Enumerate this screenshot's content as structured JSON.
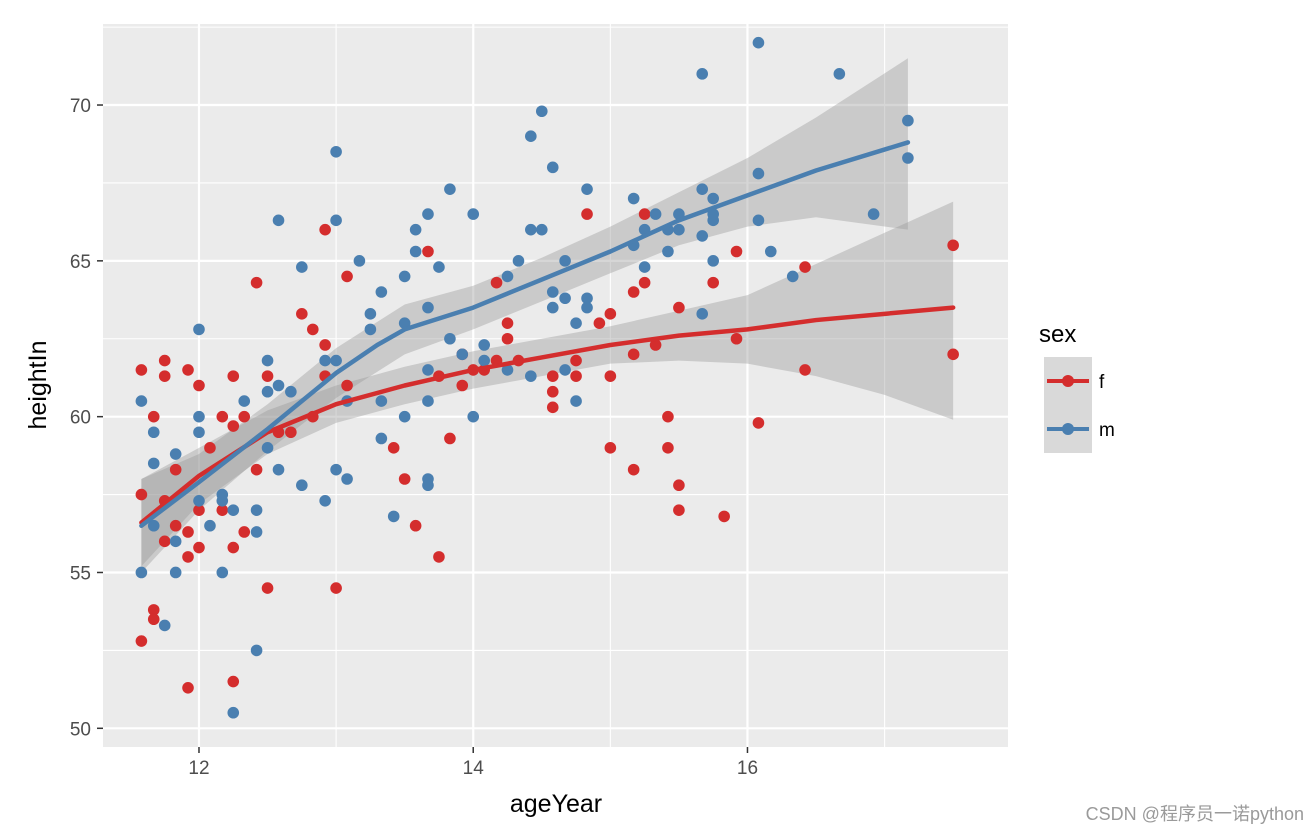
{
  "chart_data": {
    "type": "scatter",
    "xlabel": "ageYear",
    "ylabel": "heightIn",
    "xlim": [
      11.3,
      17.9
    ],
    "ylim": [
      49.4,
      72.6
    ],
    "xticks": [
      12,
      14,
      16
    ],
    "yticks": [
      50,
      55,
      60,
      65,
      70
    ],
    "xtick_labels": [
      "12",
      "14",
      "16"
    ],
    "ytick_labels": [
      "50",
      "55",
      "60",
      "65",
      "70"
    ],
    "grid": true,
    "legend": {
      "title": "sex",
      "position": "right",
      "entries": [
        {
          "key": "f",
          "label": "f"
        },
        {
          "key": "m",
          "label": "m"
        }
      ]
    },
    "series": [
      {
        "name": "f",
        "color": "#d42d2d",
        "points": [
          [
            11.58,
            61.5
          ],
          [
            11.58,
            57.5
          ],
          [
            11.58,
            52.8
          ],
          [
            11.67,
            60.0
          ],
          [
            11.67,
            53.8
          ],
          [
            11.67,
            53.5
          ],
          [
            11.75,
            61.8
          ],
          [
            11.75,
            61.3
          ],
          [
            11.75,
            57.3
          ],
          [
            11.75,
            56.0
          ],
          [
            11.83,
            58.3
          ],
          [
            11.83,
            56.5
          ],
          [
            11.92,
            61.5
          ],
          [
            11.92,
            56.3
          ],
          [
            11.92,
            55.5
          ],
          [
            11.92,
            51.3
          ],
          [
            12.0,
            61.0
          ],
          [
            12.0,
            57.0
          ],
          [
            12.0,
            55.8
          ],
          [
            12.08,
            59.0
          ],
          [
            12.17,
            60.0
          ],
          [
            12.17,
            57.0
          ],
          [
            12.25,
            61.3
          ],
          [
            12.25,
            59.7
          ],
          [
            12.25,
            55.8
          ],
          [
            12.25,
            51.5
          ],
          [
            12.33,
            60.0
          ],
          [
            12.33,
            56.3
          ],
          [
            12.42,
            64.3
          ],
          [
            12.42,
            58.3
          ],
          [
            12.5,
            61.3
          ],
          [
            12.5,
            54.5
          ],
          [
            12.58,
            59.5
          ],
          [
            12.67,
            59.5
          ],
          [
            12.75,
            63.3
          ],
          [
            12.83,
            62.8
          ],
          [
            12.83,
            60.0
          ],
          [
            12.92,
            66.0
          ],
          [
            12.92,
            62.3
          ],
          [
            12.92,
            61.3
          ],
          [
            13.0,
            54.5
          ],
          [
            13.08,
            64.5
          ],
          [
            13.08,
            61.0
          ],
          [
            13.42,
            59.0
          ],
          [
            13.5,
            58.0
          ],
          [
            13.58,
            56.5
          ],
          [
            13.67,
            65.3
          ],
          [
            13.75,
            61.3
          ],
          [
            13.75,
            55.5
          ],
          [
            13.83,
            59.3
          ],
          [
            13.92,
            62.0
          ],
          [
            13.92,
            61.0
          ],
          [
            14.0,
            61.5
          ],
          [
            14.08,
            61.5
          ],
          [
            14.17,
            64.3
          ],
          [
            14.17,
            61.8
          ],
          [
            14.25,
            63.0
          ],
          [
            14.25,
            62.5
          ],
          [
            14.33,
            61.8
          ],
          [
            14.58,
            61.3
          ],
          [
            14.58,
            60.8
          ],
          [
            14.58,
            60.3
          ],
          [
            14.75,
            61.8
          ],
          [
            14.75,
            61.3
          ],
          [
            14.83,
            66.5
          ],
          [
            14.92,
            63.0
          ],
          [
            15.0,
            63.3
          ],
          [
            15.0,
            61.3
          ],
          [
            15.0,
            59.0
          ],
          [
            15.17,
            64.0
          ],
          [
            15.17,
            62.0
          ],
          [
            15.17,
            58.3
          ],
          [
            15.25,
            66.5
          ],
          [
            15.25,
            64.3
          ],
          [
            15.33,
            62.3
          ],
          [
            15.42,
            60.0
          ],
          [
            15.42,
            59.0
          ],
          [
            15.5,
            63.5
          ],
          [
            15.5,
            57.8
          ],
          [
            15.5,
            57.0
          ],
          [
            15.75,
            64.3
          ],
          [
            15.83,
            56.8
          ],
          [
            15.92,
            65.3
          ],
          [
            15.92,
            62.5
          ],
          [
            16.08,
            59.8
          ],
          [
            16.42,
            64.8
          ],
          [
            16.42,
            61.5
          ],
          [
            17.5,
            65.5
          ],
          [
            17.5,
            62.0
          ]
        ],
        "smooth": [
          [
            11.58,
            56.6
          ],
          [
            12.0,
            58.1
          ],
          [
            12.5,
            59.5
          ],
          [
            13.0,
            60.4
          ],
          [
            13.5,
            61.0
          ],
          [
            14.0,
            61.5
          ],
          [
            14.5,
            61.9
          ],
          [
            15.0,
            62.3
          ],
          [
            15.5,
            62.6
          ],
          [
            16.0,
            62.8
          ],
          [
            16.5,
            63.1
          ],
          [
            17.0,
            63.3
          ],
          [
            17.5,
            63.5
          ]
        ],
        "band": [
          [
            11.58,
            55.2,
            58.0
          ],
          [
            12.0,
            57.2,
            59.0
          ],
          [
            12.5,
            58.8,
            60.2
          ],
          [
            13.0,
            59.8,
            61.0
          ],
          [
            13.5,
            60.4,
            61.6
          ],
          [
            14.0,
            60.9,
            62.1
          ],
          [
            14.5,
            61.3,
            62.5
          ],
          [
            15.0,
            61.7,
            62.9
          ],
          [
            15.5,
            61.8,
            63.4
          ],
          [
            16.0,
            61.7,
            63.9
          ],
          [
            16.5,
            61.3,
            64.9
          ],
          [
            17.0,
            60.7,
            65.9
          ],
          [
            17.5,
            59.9,
            66.9
          ]
        ]
      },
      {
        "name": "m",
        "color": "#4a7fb0",
        "points": [
          [
            11.58,
            60.5
          ],
          [
            11.58,
            55.0
          ],
          [
            11.67,
            59.5
          ],
          [
            11.67,
            58.5
          ],
          [
            11.67,
            56.5
          ],
          [
            11.75,
            53.3
          ],
          [
            11.83,
            58.8
          ],
          [
            11.83,
            56.0
          ],
          [
            11.83,
            55.0
          ],
          [
            12.0,
            62.8
          ],
          [
            12.0,
            60.0
          ],
          [
            12.0,
            59.5
          ],
          [
            12.0,
            57.3
          ],
          [
            12.08,
            56.5
          ],
          [
            12.17,
            57.5
          ],
          [
            12.17,
            57.3
          ],
          [
            12.17,
            55.0
          ],
          [
            12.25,
            57.0
          ],
          [
            12.25,
            50.5
          ],
          [
            12.33,
            60.5
          ],
          [
            12.42,
            57.0
          ],
          [
            12.42,
            56.3
          ],
          [
            12.42,
            52.5
          ],
          [
            12.5,
            61.8
          ],
          [
            12.5,
            60.8
          ],
          [
            12.5,
            59.0
          ],
          [
            12.58,
            66.3
          ],
          [
            12.58,
            61.0
          ],
          [
            12.58,
            58.3
          ],
          [
            12.67,
            60.8
          ],
          [
            12.75,
            64.8
          ],
          [
            12.75,
            57.8
          ],
          [
            12.92,
            61.8
          ],
          [
            12.92,
            57.3
          ],
          [
            13.0,
            68.5
          ],
          [
            13.0,
            66.3
          ],
          [
            13.0,
            61.8
          ],
          [
            13.0,
            58.3
          ],
          [
            13.08,
            60.5
          ],
          [
            13.08,
            58.0
          ],
          [
            13.17,
            65.0
          ],
          [
            13.25,
            63.3
          ],
          [
            13.25,
            62.8
          ],
          [
            13.33,
            64.0
          ],
          [
            13.33,
            60.5
          ],
          [
            13.33,
            59.3
          ],
          [
            13.42,
            56.8
          ],
          [
            13.5,
            64.5
          ],
          [
            13.5,
            63.0
          ],
          [
            13.5,
            60.0
          ],
          [
            13.58,
            66.0
          ],
          [
            13.58,
            65.3
          ],
          [
            13.67,
            66.5
          ],
          [
            13.67,
            63.5
          ],
          [
            13.67,
            61.5
          ],
          [
            13.67,
            60.5
          ],
          [
            13.67,
            58.0
          ],
          [
            13.67,
            57.8
          ],
          [
            13.75,
            64.8
          ],
          [
            13.83,
            67.3
          ],
          [
            13.83,
            62.5
          ],
          [
            13.92,
            62.0
          ],
          [
            14.0,
            66.5
          ],
          [
            14.0,
            60.0
          ],
          [
            14.08,
            62.3
          ],
          [
            14.08,
            61.8
          ],
          [
            14.25,
            64.5
          ],
          [
            14.25,
            61.5
          ],
          [
            14.33,
            65.0
          ],
          [
            14.42,
            69.0
          ],
          [
            14.42,
            66.0
          ],
          [
            14.42,
            61.3
          ],
          [
            14.5,
            69.8
          ],
          [
            14.5,
            66.0
          ],
          [
            14.58,
            68.0
          ],
          [
            14.58,
            64.0
          ],
          [
            14.58,
            63.5
          ],
          [
            14.67,
            65.0
          ],
          [
            14.67,
            63.8
          ],
          [
            14.67,
            61.5
          ],
          [
            14.75,
            63.0
          ],
          [
            14.75,
            60.5
          ],
          [
            14.83,
            67.3
          ],
          [
            14.83,
            63.8
          ],
          [
            14.83,
            63.5
          ],
          [
            15.17,
            67.0
          ],
          [
            15.17,
            65.5
          ],
          [
            15.25,
            66.0
          ],
          [
            15.25,
            64.8
          ],
          [
            15.33,
            66.5
          ],
          [
            15.42,
            66.0
          ],
          [
            15.42,
            65.3
          ],
          [
            15.5,
            66.5
          ],
          [
            15.5,
            66.0
          ],
          [
            15.67,
            71.0
          ],
          [
            15.67,
            67.3
          ],
          [
            15.67,
            65.8
          ],
          [
            15.67,
            63.3
          ],
          [
            15.75,
            67.0
          ],
          [
            15.75,
            66.5
          ],
          [
            15.75,
            66.3
          ],
          [
            15.75,
            65.0
          ],
          [
            16.08,
            72.0
          ],
          [
            16.08,
            67.8
          ],
          [
            16.08,
            66.3
          ],
          [
            16.17,
            65.3
          ],
          [
            16.33,
            64.5
          ],
          [
            16.67,
            71.0
          ],
          [
            16.92,
            66.5
          ],
          [
            17.17,
            69.5
          ],
          [
            17.17,
            68.3
          ]
        ],
        "smooth": [
          [
            11.58,
            56.5
          ],
          [
            12.0,
            57.9
          ],
          [
            12.5,
            59.6
          ],
          [
            13.0,
            61.4
          ],
          [
            13.3,
            62.3
          ],
          [
            13.5,
            62.8
          ],
          [
            14.0,
            63.5
          ],
          [
            14.5,
            64.4
          ],
          [
            15.0,
            65.3
          ],
          [
            15.5,
            66.3
          ],
          [
            16.0,
            67.1
          ],
          [
            16.5,
            67.9
          ],
          [
            17.17,
            68.8
          ]
        ],
        "band": [
          [
            11.58,
            55.0,
            58.0
          ],
          [
            12.0,
            57.0,
            58.8
          ],
          [
            12.5,
            58.9,
            60.4
          ],
          [
            13.0,
            60.6,
            62.2
          ],
          [
            13.5,
            62.0,
            63.6
          ],
          [
            14.0,
            62.8,
            64.2
          ],
          [
            14.5,
            63.7,
            65.1
          ],
          [
            15.0,
            64.6,
            66.1
          ],
          [
            15.5,
            65.5,
            67.2
          ],
          [
            16.0,
            66.1,
            68.3
          ],
          [
            16.5,
            66.4,
            69.6
          ],
          [
            17.17,
            66.0,
            71.5
          ]
        ]
      }
    ]
  },
  "watermark": "CSDN @程序员一诺python"
}
